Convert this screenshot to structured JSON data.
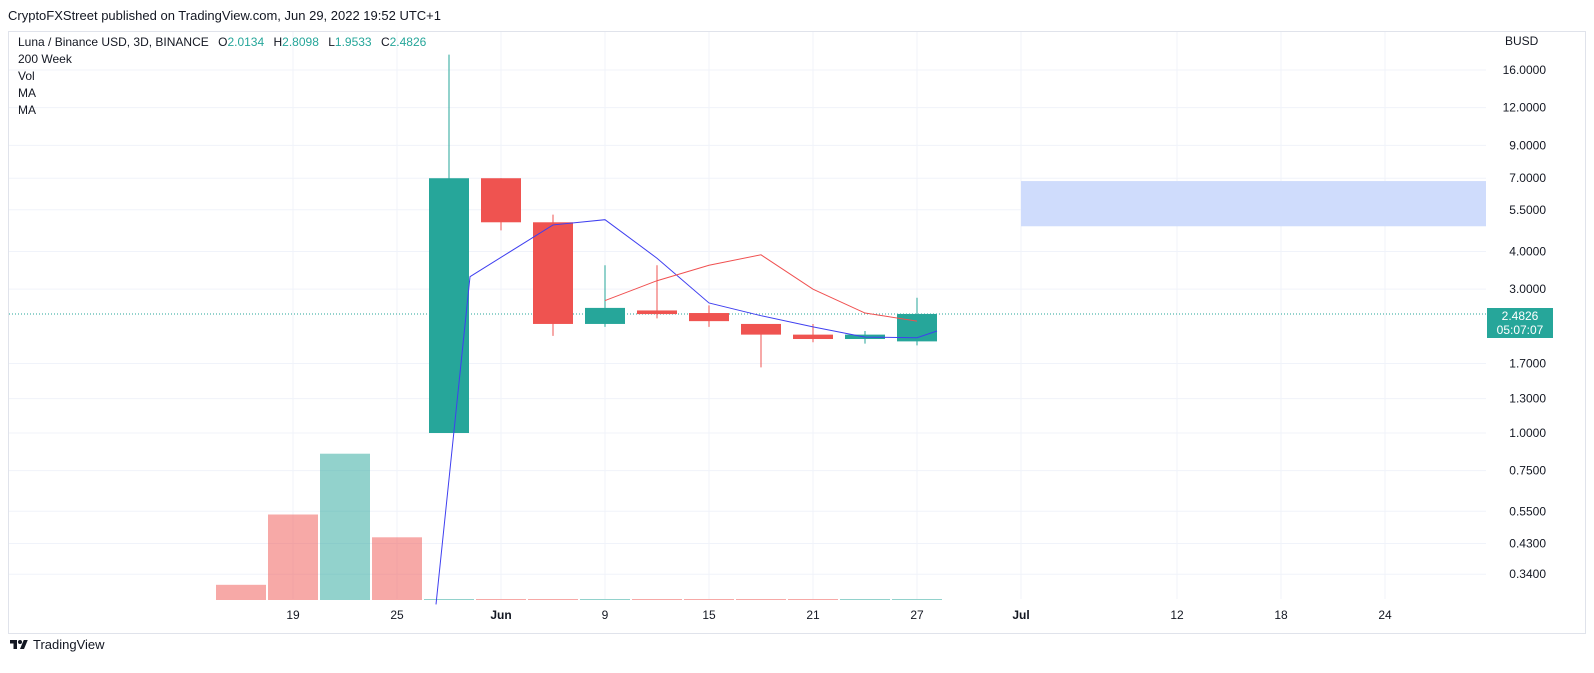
{
  "header": {
    "published_text": "CryptoFXStreet published on TradingView.com, Jun 29, 2022 19:52 UTC+1"
  },
  "legend": {
    "symbol": "Luna / Binance USD, 3D, BINANCE",
    "ohlc": [
      {
        "label": "O",
        "value": "2.0134"
      },
      {
        "label": "H",
        "value": "2.8098"
      },
      {
        "label": "L",
        "value": "1.9533"
      },
      {
        "label": "C",
        "value": "2.4826"
      }
    ],
    "indicators": [
      "200 Week",
      "Vol",
      "MA",
      "MA"
    ]
  },
  "axis": {
    "currency": "BUSD"
  },
  "price_tag": {
    "price": "2.4826",
    "countdown": "05:07:07"
  },
  "footer": {
    "brand": "TradingView",
    "logo_icon": "tradingview-logo-icon"
  },
  "colors": {
    "up": "#26a69a",
    "down": "#ef5350",
    "ma_fast": "#3f3ff0",
    "ma_slow": "#f05050",
    "zone": "#cfdcfc"
  },
  "chart_data": {
    "type": "candlestick",
    "y_scale": "log",
    "ylim": [
      0.27,
      19
    ],
    "y_ticks": [
      "16.0000",
      "12.0000",
      "9.0000",
      "7.0000",
      "5.5000",
      "4.0000",
      "3.0000",
      "1.7000",
      "1.3000",
      "1.0000",
      "0.7500",
      "0.5500",
      "0.4300",
      "0.3400"
    ],
    "x_ticks": [
      "19",
      "25",
      "Jun",
      "9",
      "15",
      "21",
      "27",
      "Jul",
      "12",
      "18",
      "24"
    ],
    "candles": [
      {
        "o": 1.0,
        "h": 18.0,
        "l": 1.0,
        "c": 7.0
      },
      {
        "o": 7.0,
        "h": 7.0,
        "l": 4.7,
        "c": 5.0
      },
      {
        "o": 5.0,
        "h": 5.3,
        "l": 2.1,
        "c": 2.3
      },
      {
        "o": 2.3,
        "h": 3.6,
        "l": 2.25,
        "c": 2.6
      },
      {
        "o": 2.55,
        "h": 3.6,
        "l": 2.4,
        "c": 2.48
      },
      {
        "o": 2.5,
        "h": 2.65,
        "l": 2.25,
        "c": 2.35
      },
      {
        "o": 2.3,
        "h": 2.3,
        "l": 1.65,
        "c": 2.12
      },
      {
        "o": 2.12,
        "h": 2.3,
        "l": 2.0,
        "c": 2.05
      },
      {
        "o": 2.05,
        "h": 2.18,
        "l": 1.98,
        "c": 2.12
      },
      {
        "o": 2.0134,
        "h": 2.8098,
        "l": 1.9533,
        "c": 2.4826
      }
    ],
    "volume_scale_max": 1.0,
    "volume": [
      {
        "v": 0.08,
        "dir": "down"
      },
      {
        "v": 0.45,
        "dir": "down"
      },
      {
        "v": 0.77,
        "dir": "up"
      },
      {
        "v": 0.33,
        "dir": "down"
      },
      {
        "v": 0.004,
        "dir": "up"
      },
      {
        "v": 0.004,
        "dir": "down"
      },
      {
        "v": 0.004,
        "dir": "down"
      },
      {
        "v": 0.004,
        "dir": "up"
      },
      {
        "v": 0.004,
        "dir": "down"
      },
      {
        "v": 0.004,
        "dir": "down"
      },
      {
        "v": 0.004,
        "dir": "down"
      },
      {
        "v": 0.004,
        "dir": "down"
      },
      {
        "v": 0.004,
        "dir": "up"
      },
      {
        "v": 0.004,
        "dir": "up"
      }
    ],
    "ma_fast": [
      0.27,
      3.3,
      4.9,
      5.1,
      3.8,
      2.7,
      2.45,
      2.25,
      2.08,
      2.07,
      2.18
    ],
    "ma_slow": [
      2.75,
      3.2,
      3.6,
      3.9,
      3.0,
      2.5,
      2.35
    ],
    "resistance_zone": {
      "low": 4.85,
      "high": 6.85
    },
    "last_price": 2.4826
  }
}
